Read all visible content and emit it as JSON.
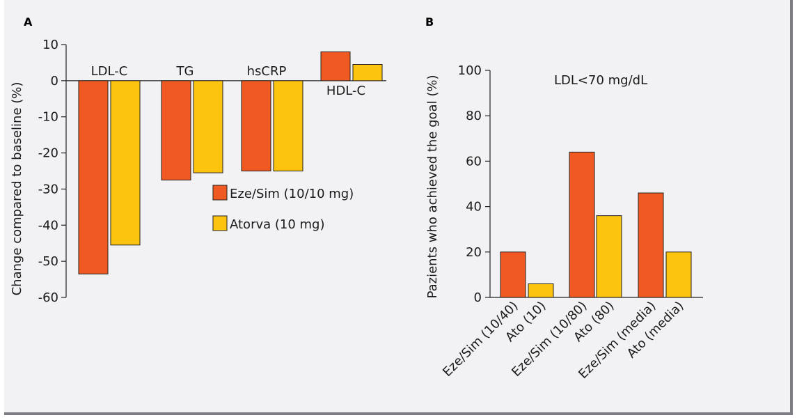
{
  "colors": {
    "eze_sim": "#f05a22",
    "atorva": "#fcc30f",
    "frame_bg": "#f2f2f4",
    "frame_shadow": "#7d7d85"
  },
  "chart_data": [
    {
      "panel": "A",
      "type": "bar",
      "ylabel": "Change compared to baseline (%)",
      "ylim": [
        -60,
        10
      ],
      "yticks": [
        10,
        0,
        -10,
        -20,
        -30,
        -40,
        -50,
        -60
      ],
      "categories": [
        "LDL-C",
        "TG",
        "hsCRP",
        "HDL-C"
      ],
      "series": [
        {
          "name": "Eze/Sim (10/10 mg)",
          "color": "#f05a22",
          "values": [
            -53.5,
            -27.5,
            -25,
            8
          ]
        },
        {
          "name": "Atorva (10 mg)",
          "color": "#fcc30f",
          "values": [
            -45.5,
            -25.5,
            -25,
            4.5
          ]
        }
      ],
      "legend": [
        "Eze/Sim (10/10 mg)",
        "Atorva (10 mg)"
      ],
      "legend_position": "center-right"
    },
    {
      "panel": "B",
      "type": "bar",
      "title": "LDL<70 mg/dL",
      "ylabel": "Pazients who achieved the  goal (%)",
      "ylim": [
        0,
        100
      ],
      "yticks": [
        100,
        80,
        60,
        40,
        20,
        0
      ],
      "categories": [
        "Eze/Sim (10/40)",
        "Ato (10)",
        "Eze/Sim (10/80)",
        "Ato (80)",
        "Eze/Sim (media)",
        "Ato (media)"
      ],
      "values": [
        20,
        6,
        64,
        36,
        46,
        20
      ],
      "bar_colors": [
        "#f05a22",
        "#fcc30f",
        "#f05a22",
        "#fcc30f",
        "#f05a22",
        "#fcc30f"
      ]
    }
  ]
}
